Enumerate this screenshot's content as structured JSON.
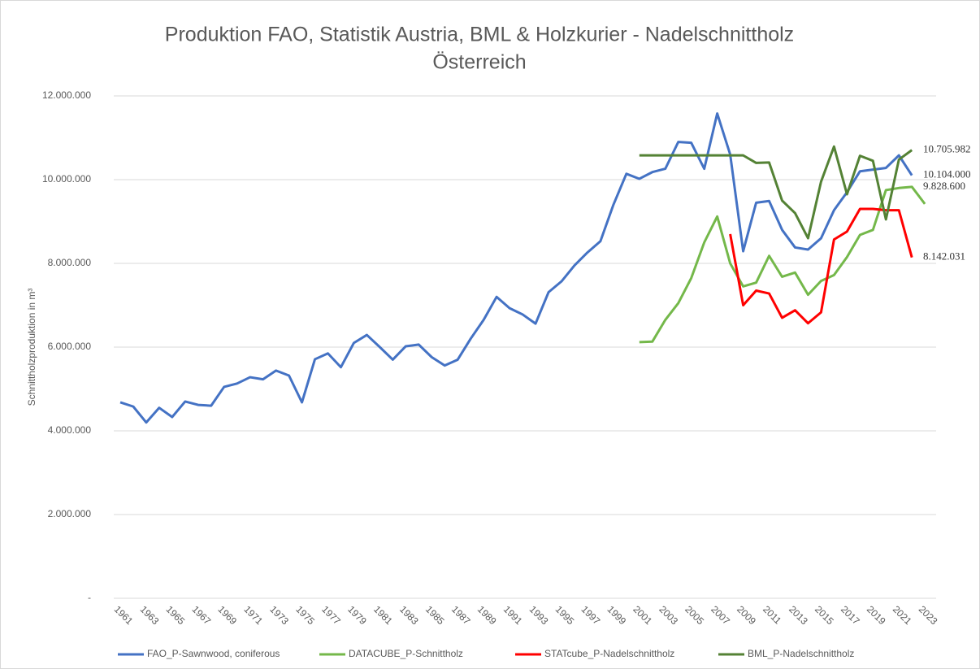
{
  "chart_data": {
    "type": "line",
    "title": [
      "Produktion FAO, Statistik Austria, BML & Holzkurier - Nadelschnittholz",
      "Österreich"
    ],
    "y_label": "Schnittholzproduktion in m³",
    "categories": [
      "1961",
      null,
      "1963",
      null,
      "1965",
      null,
      "1967",
      null,
      "1969",
      null,
      "1971",
      null,
      "1973",
      null,
      "1975",
      null,
      "1977",
      null,
      "1979",
      null,
      "1981",
      null,
      "1983",
      null,
      "1985",
      null,
      "1987",
      null,
      "1989",
      null,
      "1991",
      null,
      "1993",
      null,
      "1995",
      null,
      "1997",
      null,
      "1999",
      null,
      "2001",
      null,
      "2003",
      null,
      "2005",
      null,
      "2007",
      null,
      "2009",
      null,
      "2011",
      null,
      "2013",
      null,
      "2015",
      null,
      "2017",
      null,
      "2019",
      null,
      "2021",
      null,
      "2023"
    ],
    "ylim": [
      0,
      12000000
    ],
    "yticks": [
      {
        "value": 0,
        "label": "-"
      },
      {
        "value": 2000000,
        "label": "2.000.000"
      },
      {
        "value": 4000000,
        "label": "4.000.000"
      },
      {
        "value": 6000000,
        "label": "6.000.000"
      },
      {
        "value": 8000000,
        "label": "8.000.000"
      },
      {
        "value": 10000000,
        "label": "10.000.000"
      },
      {
        "value": 12000000,
        "label": "12.000.000"
      }
    ],
    "grid": true,
    "legend": "bottom",
    "series": [
      {
        "name": "FAO_P-Sawnwood, coniferous",
        "color": "#4472c4",
        "values": [
          4680000,
          4580000,
          4200000,
          4550000,
          4330000,
          4700000,
          4620000,
          4600000,
          5050000,
          5130000,
          5280000,
          5230000,
          5440000,
          5320000,
          4680000,
          5710000,
          5850000,
          5520000,
          6100000,
          6290000,
          6000000,
          5700000,
          6020000,
          6060000,
          5760000,
          5560000,
          5700000,
          6200000,
          6650000,
          7200000,
          6930000,
          6780000,
          6560000,
          7310000,
          7570000,
          7950000,
          8260000,
          8530000,
          9400000,
          10140000,
          10020000,
          10180000,
          10260000,
          10900000,
          10880000,
          10260000,
          11580000,
          10600000,
          8290000,
          9450000,
          9490000,
          8800000,
          8380000,
          8330000,
          8600000,
          9270000,
          9700000,
          10200000,
          10240000,
          10280000,
          10580000,
          10104000,
          null
        ],
        "value_labels": [
          null,
          null,
          null,
          null,
          null,
          null,
          null,
          null,
          null,
          null,
          null,
          null,
          null,
          null,
          null,
          null,
          null,
          null,
          null,
          null,
          null,
          null,
          null,
          null,
          null,
          null,
          null,
          null,
          null,
          null,
          null,
          null,
          null,
          null,
          null,
          null,
          null,
          null,
          null,
          null,
          null,
          null,
          null,
          null,
          null,
          null,
          null,
          null,
          null,
          null,
          null,
          null,
          null,
          null,
          null,
          null,
          null,
          null,
          null,
          null,
          null,
          "10.104.000",
          null
        ]
      },
      {
        "name": "DATACUBE_P-Schnittholz",
        "color": "#74b84a",
        "values": [
          null,
          null,
          null,
          null,
          null,
          null,
          null,
          null,
          null,
          null,
          null,
          null,
          null,
          null,
          null,
          null,
          null,
          null,
          null,
          null,
          null,
          null,
          null,
          null,
          null,
          null,
          null,
          null,
          null,
          null,
          null,
          null,
          null,
          null,
          null,
          null,
          null,
          null,
          null,
          null,
          6120000,
          6130000,
          6650000,
          7050000,
          7650000,
          8500000,
          9120000,
          8000000,
          7450000,
          7540000,
          8180000,
          7680000,
          7780000,
          7250000,
          7580000,
          7720000,
          8150000,
          8680000,
          8800000,
          9750000,
          9800000,
          9828600,
          9420000
        ],
        "value_labels": [
          null,
          null,
          null,
          null,
          null,
          null,
          null,
          null,
          null,
          null,
          null,
          null,
          null,
          null,
          null,
          null,
          null,
          null,
          null,
          null,
          null,
          null,
          null,
          null,
          null,
          null,
          null,
          null,
          null,
          null,
          null,
          null,
          null,
          null,
          null,
          null,
          null,
          null,
          null,
          null,
          null,
          null,
          null,
          null,
          null,
          null,
          null,
          null,
          null,
          null,
          null,
          null,
          null,
          null,
          null,
          null,
          null,
          null,
          null,
          null,
          null,
          "9.828.600",
          null
        ]
      },
      {
        "name": "STATcube_P-Nadelschnittholz",
        "color": "#ff0000",
        "values": [
          null,
          null,
          null,
          null,
          null,
          null,
          null,
          null,
          null,
          null,
          null,
          null,
          null,
          null,
          null,
          null,
          null,
          null,
          null,
          null,
          null,
          null,
          null,
          null,
          null,
          null,
          null,
          null,
          null,
          null,
          null,
          null,
          null,
          null,
          null,
          null,
          null,
          null,
          null,
          null,
          null,
          null,
          null,
          null,
          null,
          null,
          null,
          8700000,
          7000000,
          7350000,
          7280000,
          6700000,
          6880000,
          6570000,
          6830000,
          8570000,
          8760000,
          9300000,
          9300000,
          9270000,
          9270000,
          8142031,
          null
        ],
        "value_labels": [
          null,
          null,
          null,
          null,
          null,
          null,
          null,
          null,
          null,
          null,
          null,
          null,
          null,
          null,
          null,
          null,
          null,
          null,
          null,
          null,
          null,
          null,
          null,
          null,
          null,
          null,
          null,
          null,
          null,
          null,
          null,
          null,
          null,
          null,
          null,
          null,
          null,
          null,
          null,
          null,
          null,
          null,
          null,
          null,
          null,
          null,
          null,
          null,
          null,
          null,
          null,
          null,
          null,
          null,
          null,
          null,
          null,
          null,
          null,
          null,
          null,
          "8.142.031",
          null
        ]
      },
      {
        "name": "BML_P-Nadelschnittholz",
        "color": "#548235",
        "values": [
          null,
          null,
          null,
          null,
          null,
          null,
          null,
          null,
          null,
          null,
          null,
          null,
          null,
          null,
          null,
          null,
          null,
          null,
          null,
          null,
          null,
          null,
          null,
          null,
          null,
          null,
          null,
          null,
          null,
          null,
          null,
          null,
          null,
          null,
          null,
          null,
          null,
          null,
          null,
          null,
          10580000,
          10580000,
          10580000,
          10580000,
          10580000,
          10580000,
          10580000,
          10580000,
          10580000,
          10400000,
          10410000,
          9500000,
          9200000,
          8600000,
          9950000,
          10790000,
          9650000,
          10570000,
          10450000,
          9050000,
          10480000,
          10705982,
          null
        ],
        "value_labels": [
          null,
          null,
          null,
          null,
          null,
          null,
          null,
          null,
          null,
          null,
          null,
          null,
          null,
          null,
          null,
          null,
          null,
          null,
          null,
          null,
          null,
          null,
          null,
          null,
          null,
          null,
          null,
          null,
          null,
          null,
          null,
          null,
          null,
          null,
          null,
          null,
          null,
          null,
          null,
          null,
          null,
          null,
          null,
          null,
          null,
          null,
          null,
          null,
          null,
          null,
          null,
          null,
          null,
          null,
          null,
          null,
          null,
          null,
          null,
          null,
          null,
          "10.705.982",
          null
        ]
      }
    ]
  }
}
